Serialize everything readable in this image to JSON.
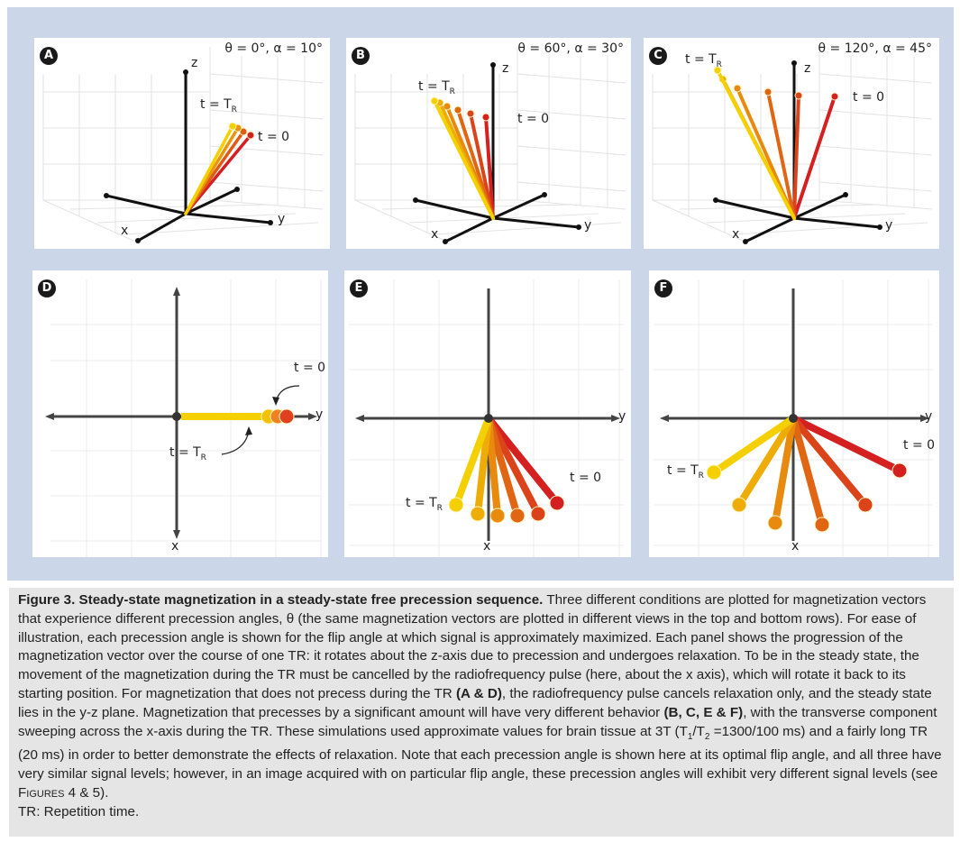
{
  "figure": {
    "panels": [
      {
        "id": "A",
        "params": "θ = 0°, α = 10°",
        "labels": {
          "z": "z",
          "x": "x",
          "y": "y",
          "t0": "t = 0",
          "tR": "t = T",
          "tR_sub": "R"
        }
      },
      {
        "id": "B",
        "params": "θ = 60°, α = 30°",
        "labels": {
          "z": "z",
          "x": "x",
          "y": "y",
          "t0": "t = 0",
          "tR": "t = T",
          "tR_sub": "R"
        }
      },
      {
        "id": "C",
        "params": "θ = 120°, α = 45°",
        "labels": {
          "z": "z",
          "x": "x",
          "y": "y",
          "t0": "t = 0",
          "tR": "t = T",
          "tR_sub": "R"
        }
      },
      {
        "id": "D",
        "labels": {
          "x": "x",
          "y": "y",
          "t0": "t = 0",
          "tR": "t = T",
          "tR_sub": "R"
        }
      },
      {
        "id": "E",
        "labels": {
          "x": "x",
          "y": "y",
          "t0": "t = 0",
          "tR": "t = T",
          "tR_sub": "R"
        }
      },
      {
        "id": "F",
        "labels": {
          "x": "x",
          "y": "y",
          "t0": "t = 0",
          "tR": "t = T",
          "tR_sub": "R"
        }
      }
    ]
  },
  "caption": {
    "title": "Figure 3. Steady-state magnetization in a steady-state free precession sequence.",
    "p1": " Three different conditions are plotted for magnetization vectors that experience different precession angles, θ (the same magnetization vectors are plotted in different views in the top and bottom rows). For ease of illustration, each precession angle is shown for the flip angle at which signal is approximately maximized. Each panel shows the progression of the magnetization vector over the course of one TR: it rotates about the z-axis due to precession and undergoes relaxation. To be in the steady state, the movement of the magnetization during the TR must be cancelled by the radiofrequency pulse (here, about the x axis), which will rotate it back to its starting position. For magnetization that does not precess during the TR ",
    "b1": "(A & D)",
    "p2": ", the radiofrequency pulse cancels relaxation only, and the steady state lies in the y-z plane. Magnetization that precesses by a significant amount will have very different behavior ",
    "b2": "(B, C, E & F)",
    "p3": ", with the transverse component sweeping across the x-axis during the TR. These simulations used approximate values for brain tissue at 3T (T",
    "sub1": "1",
    "p4": "/T",
    "sub2": "2",
    "p5": " =1300/100 ms) and a fairly long TR (20 ms) in order to better demonstrate the effects of relaxation. Note that each precession angle is shown here at its optimal flip angle, and all three have very similar signal levels; however, in an image acquired with on particular flip angle, these precession angles will exhibit very different signal levels (see ",
    "ref": "Figures 4 & 5",
    "p6": ").",
    "abbrev": "TR: Repetition time."
  },
  "colors": {
    "figure_bg": "#cbd6e8",
    "caption_bg": "#e5e5e5",
    "vec_start": "#d42020",
    "vec_end": "#f5d000"
  }
}
